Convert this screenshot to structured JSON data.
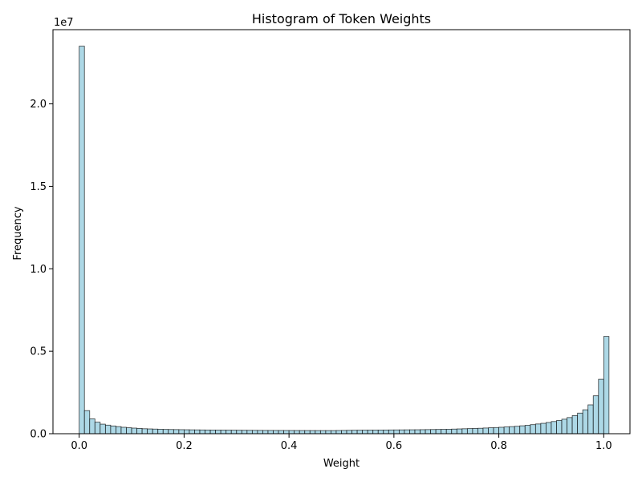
{
  "chart_data": {
    "type": "bar",
    "title": "Histogram of Token Weights",
    "xlabel": "Weight",
    "ylabel": "Frequency",
    "y_offset_label": "1e7",
    "xlim": [
      -0.05,
      1.05
    ],
    "ylim": [
      0,
      24500000
    ],
    "bar_color": "#add8e6",
    "edge_color": "#000000",
    "grid": false,
    "x_ticks": [
      0.0,
      0.2,
      0.4,
      0.6,
      0.8,
      1.0
    ],
    "x_tick_labels": [
      "0.0",
      "0.2",
      "0.4",
      "0.6",
      "0.8",
      "1.0"
    ],
    "y_ticks": [
      0,
      5000000,
      10000000,
      15000000,
      20000000
    ],
    "y_tick_labels": [
      "0.0",
      "0.5",
      "1.0",
      "1.5",
      "2.0"
    ],
    "bin_start": 0.0,
    "bin_width": 0.01,
    "values": [
      23500000,
      1400000,
      900000,
      700000,
      580000,
      520000,
      470000,
      430000,
      390000,
      360000,
      340000,
      320000,
      300000,
      290000,
      280000,
      270000,
      260000,
      255000,
      250000,
      245000,
      240000,
      235000,
      232000,
      228000,
      225000,
      222000,
      220000,
      218000,
      215000,
      213000,
      210000,
      208000,
      206000,
      204000,
      202000,
      200000,
      199000,
      198000,
      197000,
      196000,
      195000,
      194000,
      193000,
      192000,
      191000,
      190000,
      190000,
      190000,
      190000,
      195000,
      200000,
      205000,
      210000,
      212000,
      215000,
      218000,
      220000,
      222000,
      225000,
      228000,
      230000,
      232000,
      235000,
      238000,
      240000,
      245000,
      250000,
      255000,
      260000,
      265000,
      270000,
      280000,
      290000,
      300000,
      310000,
      320000,
      330000,
      345000,
      360000,
      375000,
      390000,
      410000,
      430000,
      450000,
      480000,
      510000,
      550000,
      590000,
      630000,
      680000,
      740000,
      800000,
      880000,
      980000,
      1100000,
      1250000,
      1450000,
      1750000,
      2300000,
      3300000,
      5900000
    ]
  }
}
